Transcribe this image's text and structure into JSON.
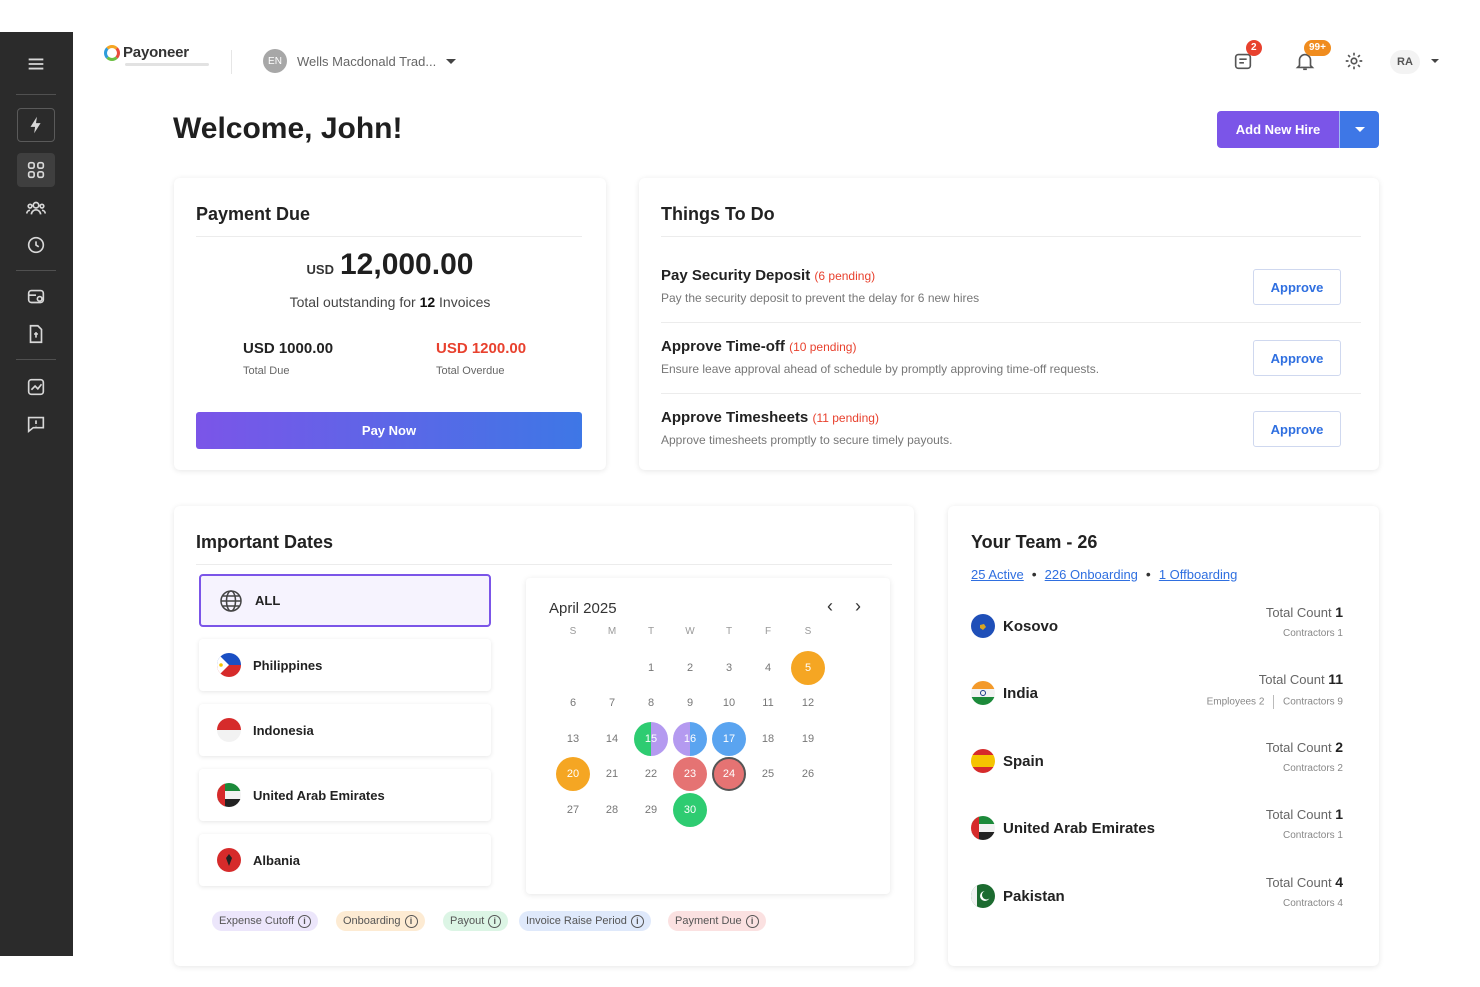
{
  "topbar": {
    "brand": "Payoneer",
    "org_initials": "EN",
    "org_name": "Wells Macdonald Trad...",
    "tasks_badge": "2",
    "notif_badge": "99+",
    "user_initials": "RA"
  },
  "welcome": "Welcome, John!",
  "add_new_hire": "Add New Hire",
  "payment_due": {
    "title": "Payment Due",
    "currency": "USD",
    "amount": "12,000.00",
    "subtitle_prefix": "Total outstanding for",
    "invoice_count": "12",
    "subtitle_suffix": "Invoices",
    "total_due_value": "USD 1000.00",
    "total_due_label": "Total Due",
    "total_overdue_value": "USD 1200.00",
    "total_overdue_label": "Total Overdue",
    "pay_now": "Pay Now"
  },
  "things_to_do": {
    "title": "Things To Do",
    "items": [
      {
        "title": "Pay Security Deposit",
        "pending": "(6 pending)",
        "desc": "Pay the security deposit to prevent the delay for 6 new hires",
        "action": "Approve"
      },
      {
        "title": "Approve Time-off",
        "pending": "(10 pending)",
        "desc": "Ensure leave approval ahead of schedule by promptly approving time-off requests.",
        "action": "Approve"
      },
      {
        "title": "Approve Timesheets",
        "pending": "(11 pending)",
        "desc": "Approve timesheets promptly to secure timely payouts.",
        "action": "Approve"
      }
    ]
  },
  "important_dates": {
    "title": "Important Dates",
    "regions": [
      "ALL",
      "Philippines",
      "Indonesia",
      "United Arab Emirates",
      "Albania"
    ],
    "calendar": {
      "month": "April 2025",
      "weekdays": [
        "S",
        "M",
        "T",
        "W",
        "T",
        "F",
        "S"
      ],
      "prev": "‹",
      "next": "›"
    },
    "legend": [
      "Expense Cutoff",
      "Onboarding",
      "Payout",
      "Invoice Raise Period",
      "Payment Due"
    ]
  },
  "team": {
    "title": "Your Team - 26",
    "active": "25 Active",
    "onboarding": "226 Onboarding",
    "offboarding": "1 Offboarding",
    "total_label": "Total Count",
    "rows": [
      {
        "country": "Kosovo",
        "total": "1",
        "breakdown": "Contractors 1"
      },
      {
        "country": "India",
        "total": "11",
        "employees": "Employees 2",
        "breakdown": "Contractors 9"
      },
      {
        "country": "Spain",
        "total": "2",
        "breakdown": "Contractors 2"
      },
      {
        "country": "United Arab Emirates",
        "total": "1",
        "breakdown": "Contractors 1"
      },
      {
        "country": "Pakistan",
        "total": "4",
        "breakdown": "Contractors 4"
      }
    ]
  },
  "colors": {
    "primary": "#7b55e8",
    "blue": "#3e77e6",
    "danger": "#e8412e",
    "sidebar": "#2b2b2b",
    "payout": "#2ecc71",
    "onboarding": "#f5a623",
    "payment_due": "#e57373"
  }
}
